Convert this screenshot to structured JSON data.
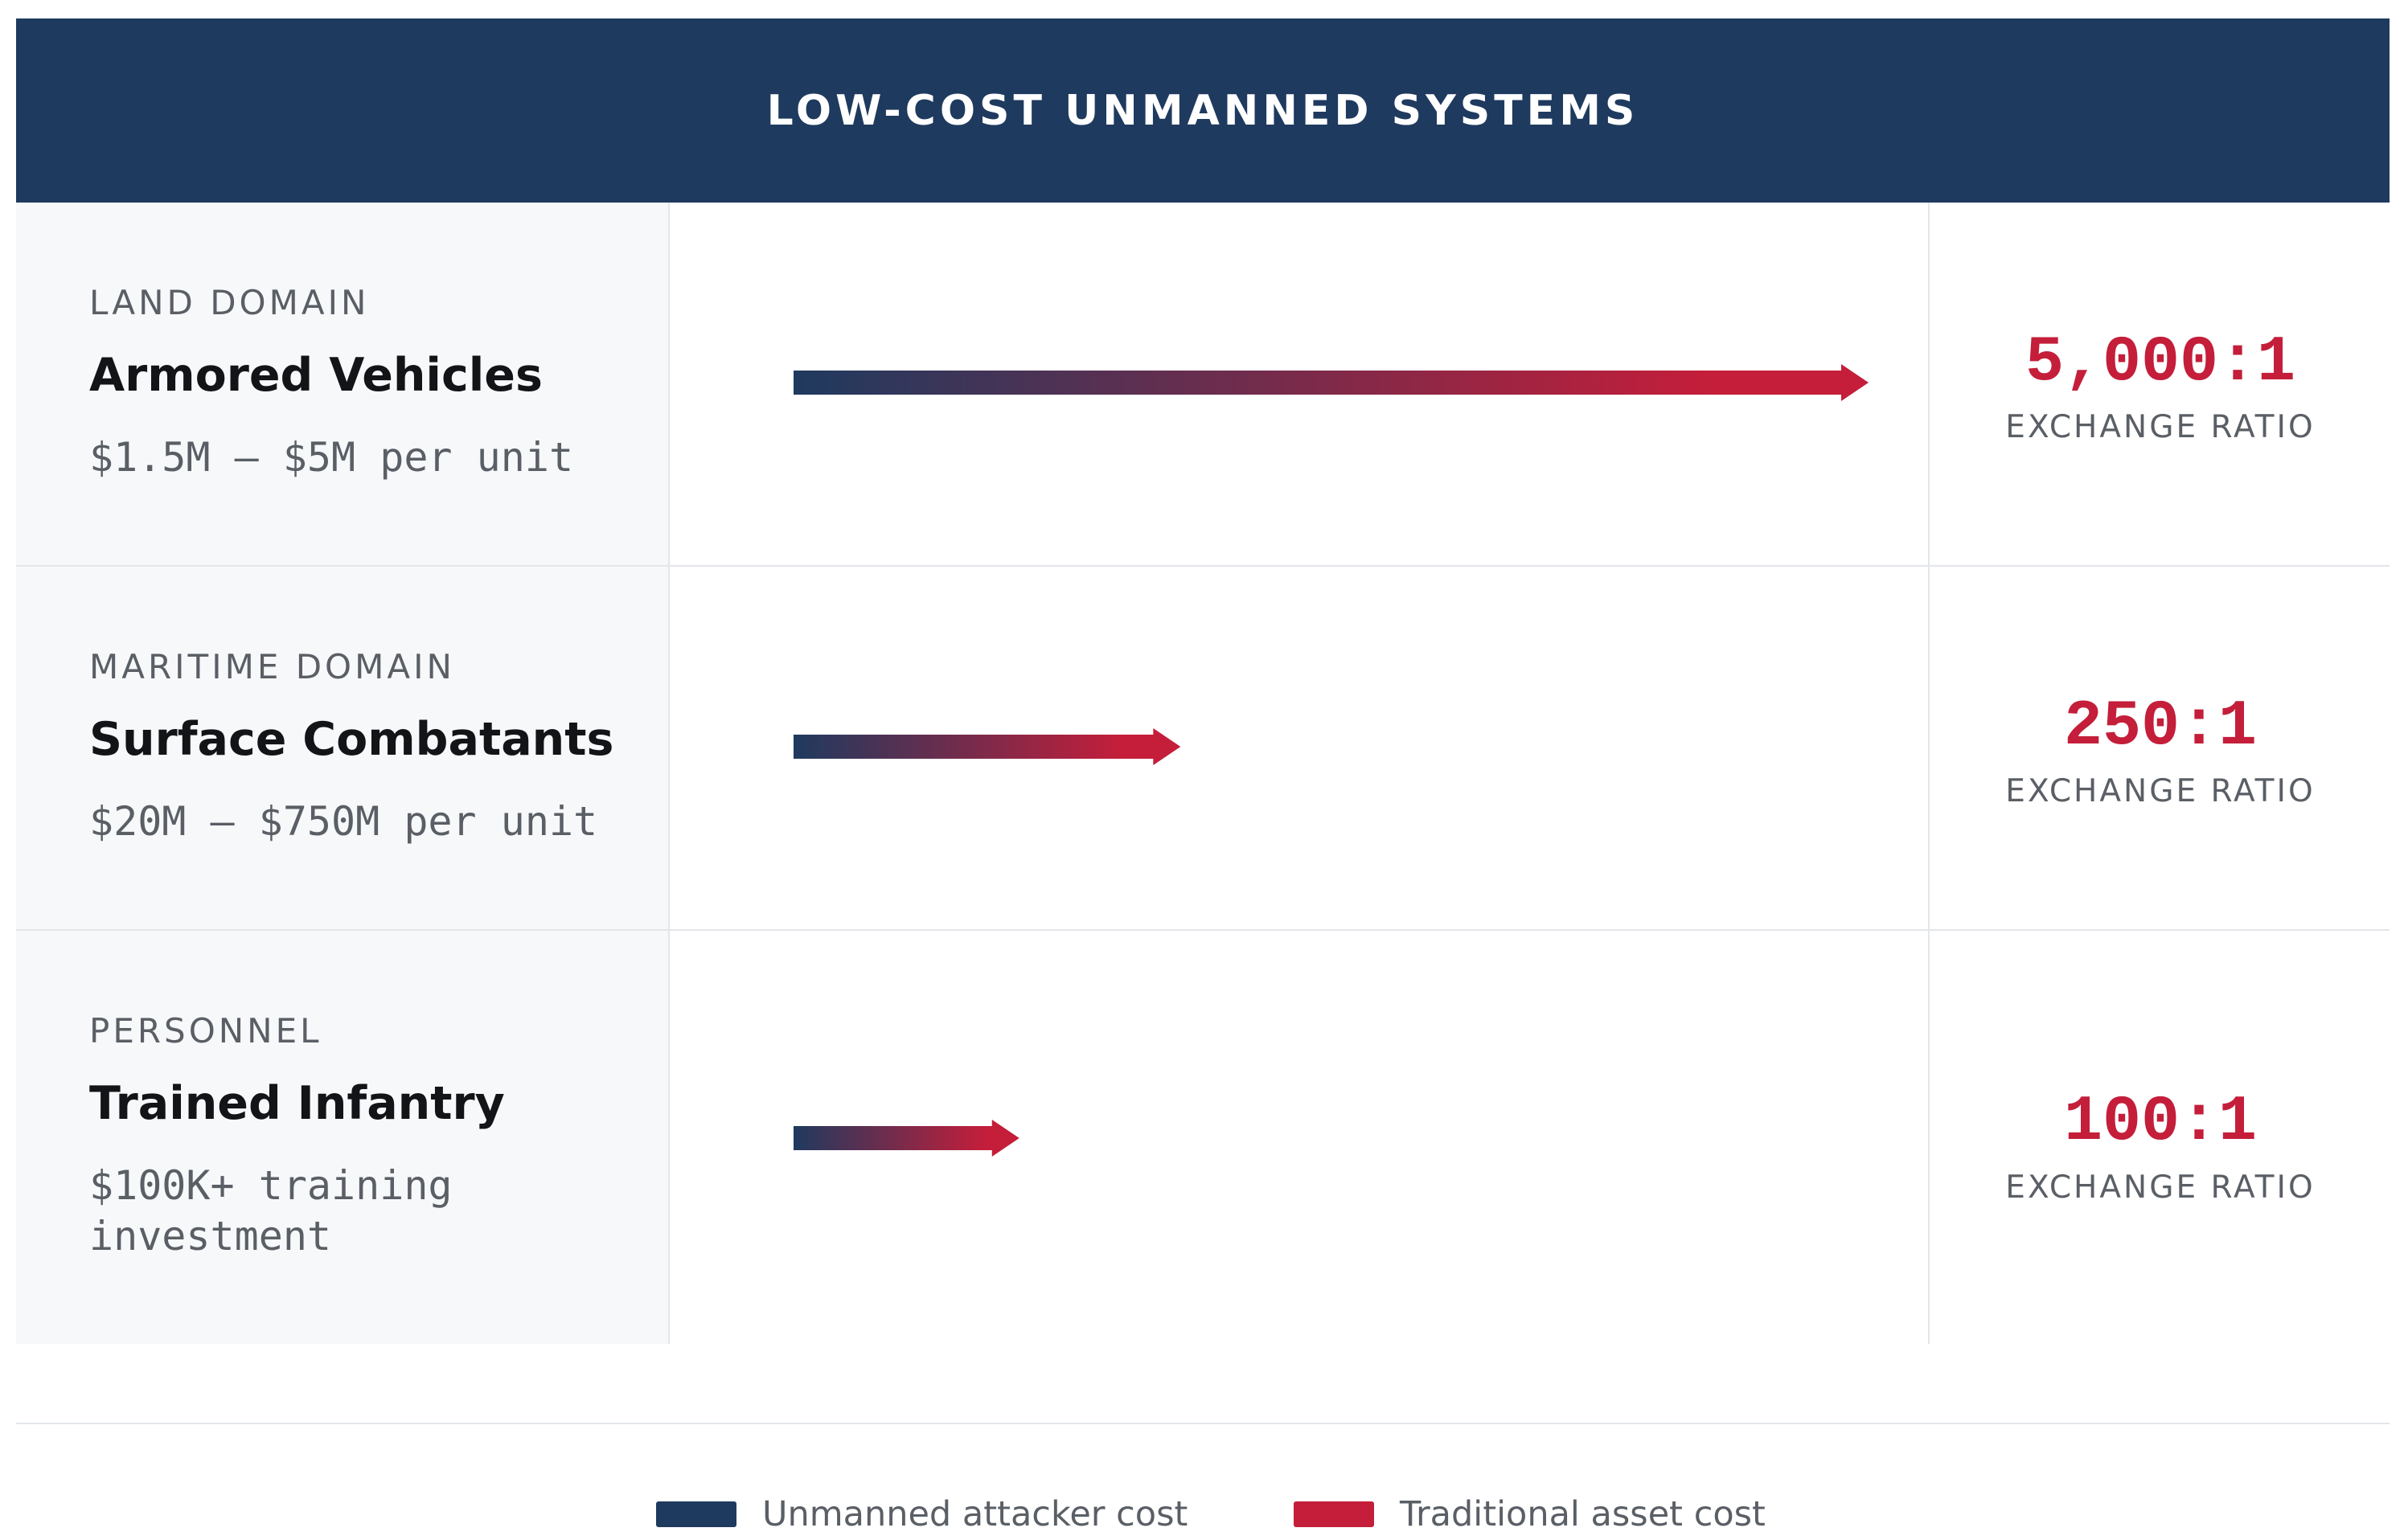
{
  "header": {
    "title": "LOW-COST UNMANNED SYSTEMS"
  },
  "chart_data": {
    "type": "bar",
    "title": "LOW-COST UNMANNED SYSTEMS",
    "orientation": "horizontal",
    "categories": [
      "Armored Vehicles",
      "Surface Combatants",
      "Trained Infantry"
    ],
    "rows": [
      {
        "domain": "LAND DOMAIN",
        "title": "Armored Vehicles",
        "cost": "$1.5M – $5M per unit",
        "ratio": "5,000:1",
        "ratio_label": "EXCHANGE RATIO"
      },
      {
        "domain": "MARITIME DOMAIN",
        "title": "Surface Combatants",
        "cost": "$20M – $750M per unit",
        "ratio": "250:1",
        "ratio_label": "EXCHANGE RATIO"
      },
      {
        "domain": "PERSONNEL",
        "title": "Trained Infantry",
        "cost": "$100K+ training investment",
        "ratio": "100:1",
        "ratio_label": "EXCHANGE RATIO"
      }
    ],
    "bar_fraction_of_max": [
      1.0,
      0.36,
      0.21
    ],
    "legend": [
      {
        "label": "Unmanned attacker cost",
        "color": "#1f3a5f"
      },
      {
        "label": "Traditional asset cost",
        "color": "#c41e3a"
      }
    ]
  },
  "colors": {
    "navy": "#1f3a5f",
    "red": "#c41e3a"
  }
}
